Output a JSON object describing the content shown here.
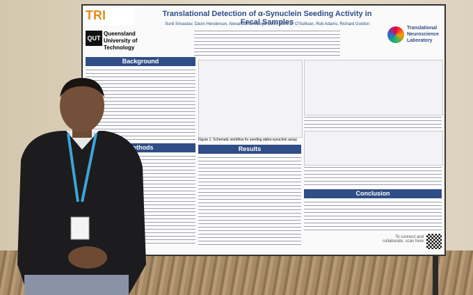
{
  "poster": {
    "title": "Translational Detection of α-Synuclein Seeding Activity in Fecal Samples",
    "authors": "Sunil Srivastav, Davin Henderson, Alexander Christoph Lehn, John D. O'Sullivan, Rob Adams, Richard Gordon",
    "logos": {
      "tri": "TRI",
      "qut": "QUT",
      "university": "Queensland University of Technology",
      "lab": "Translational Neuroscience Laboratory"
    },
    "sections": [
      "Background",
      "Methods",
      "Results",
      "Conclusion"
    ],
    "figure_caption": "Figure 1: Schematic workflow for seeding alpha-synuclein assay",
    "footer": "To connect and collaborate, scan here"
  }
}
